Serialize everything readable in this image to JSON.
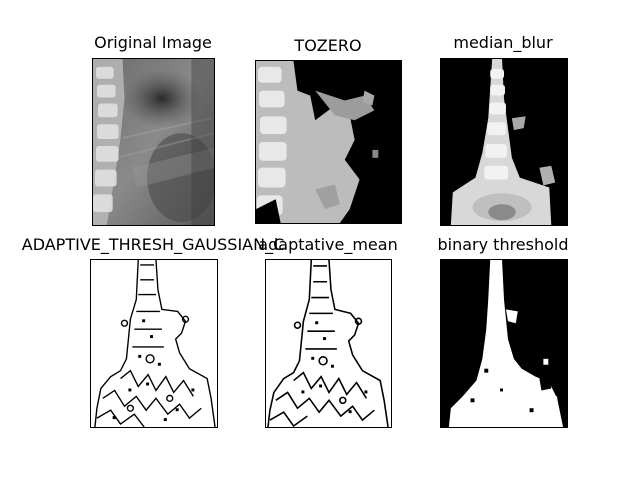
{
  "figure": {
    "background": "#ffffff",
    "panels": [
      {
        "title": "Original Image",
        "kind": "grayscale"
      },
      {
        "title": "TOZERO",
        "kind": "threshold-tozero"
      },
      {
        "title": "median_blur",
        "kind": "threshold-median"
      },
      {
        "title": "ADAPTIVE_THRESH_GAUSSIAN_C",
        "kind": "edges"
      },
      {
        "title": "adaptative_mean",
        "kind": "edges"
      },
      {
        "title": "binary threshold",
        "kind": "binary"
      }
    ]
  }
}
